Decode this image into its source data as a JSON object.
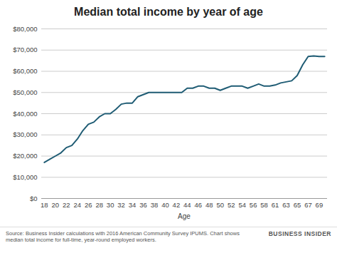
{
  "chart_data": {
    "type": "line",
    "title": "Median total income by year of age",
    "x_label": "Age",
    "source": "Source: Business Insider calculations with 2016 American Community Survey IPUMS. Chart shows median total income for full-time, year-round employed workers.",
    "brand": "BUSINESS INSIDER",
    "categories": [
      "18",
      null,
      "20",
      null,
      "22",
      null,
      "24",
      null,
      "26",
      null,
      "28",
      null,
      "30",
      null,
      "32",
      null,
      "34",
      null,
      "36",
      null,
      "38",
      null,
      "40",
      null,
      "42",
      null,
      "44",
      null,
      "46",
      null,
      "48",
      null,
      "50",
      null,
      "52",
      null,
      "54",
      null,
      "56",
      null,
      "58",
      null,
      "61",
      null,
      "63",
      null,
      "65",
      null,
      "67",
      null,
      "69",
      null
    ],
    "values": [
      17000,
      18500,
      20000,
      21500,
      24000,
      25000,
      28000,
      32000,
      35000,
      36000,
      38500,
      40000,
      40000,
      42000,
      44500,
      45000,
      45000,
      48000,
      49000,
      50000,
      50000,
      50000,
      50000,
      50000,
      50000,
      50000,
      52000,
      52000,
      53000,
      53000,
      52000,
      52000,
      51000,
      52000,
      53000,
      53000,
      53000,
      52000,
      53000,
      54000,
      53000,
      53000,
      53500,
      54500,
      55000,
      55500,
      58000,
      63000,
      67000,
      67200,
      67000,
      67000
    ],
    "color": "#1f5c74",
    "ylim": [
      0,
      80000
    ],
    "yticks": [
      {
        "value": 0,
        "label": "$0"
      },
      {
        "value": 10000,
        "label": "$10,000"
      },
      {
        "value": 20000,
        "label": "$20,000"
      },
      {
        "value": 30000,
        "label": "$30,000"
      },
      {
        "value": 40000,
        "label": "$40,000"
      },
      {
        "value": 50000,
        "label": "$50,000"
      },
      {
        "value": 60000,
        "label": "$60,000"
      },
      {
        "value": 70000,
        "label": "$70,000"
      },
      {
        "value": 80000,
        "label": "$80,000"
      }
    ],
    "grid": true
  }
}
